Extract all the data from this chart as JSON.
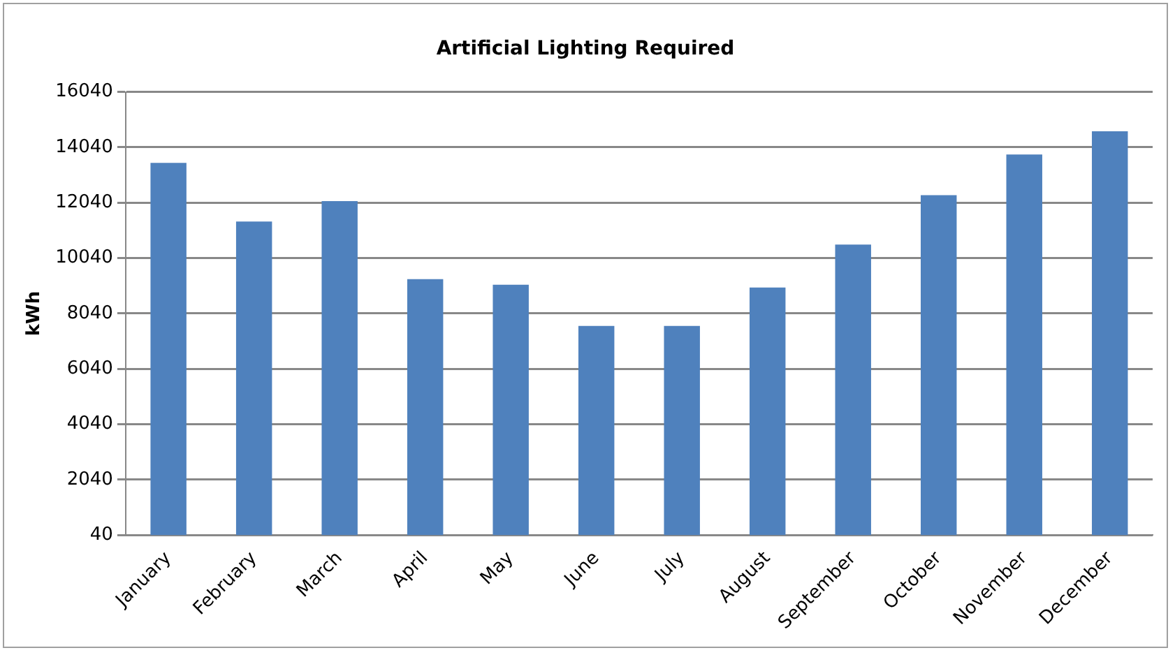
{
  "chart_data": {
    "type": "bar",
    "title": "Artificial Lighting Required",
    "ylabel": "kWh",
    "categories": [
      "January",
      "February",
      "March",
      "April",
      "May",
      "June",
      "July",
      "August",
      "September",
      "October",
      "November",
      "December"
    ],
    "values": [
      13480,
      11360,
      12100,
      9280,
      9080,
      7590,
      7590,
      8980,
      10530,
      12310,
      13780,
      14620
    ],
    "color": "#4f81bd",
    "ylim": [
      40,
      16040
    ],
    "yticks": [
      40,
      2040,
      4040,
      6040,
      8040,
      10040,
      12040,
      14040,
      16040
    ],
    "grid": "y",
    "legend": false
  }
}
